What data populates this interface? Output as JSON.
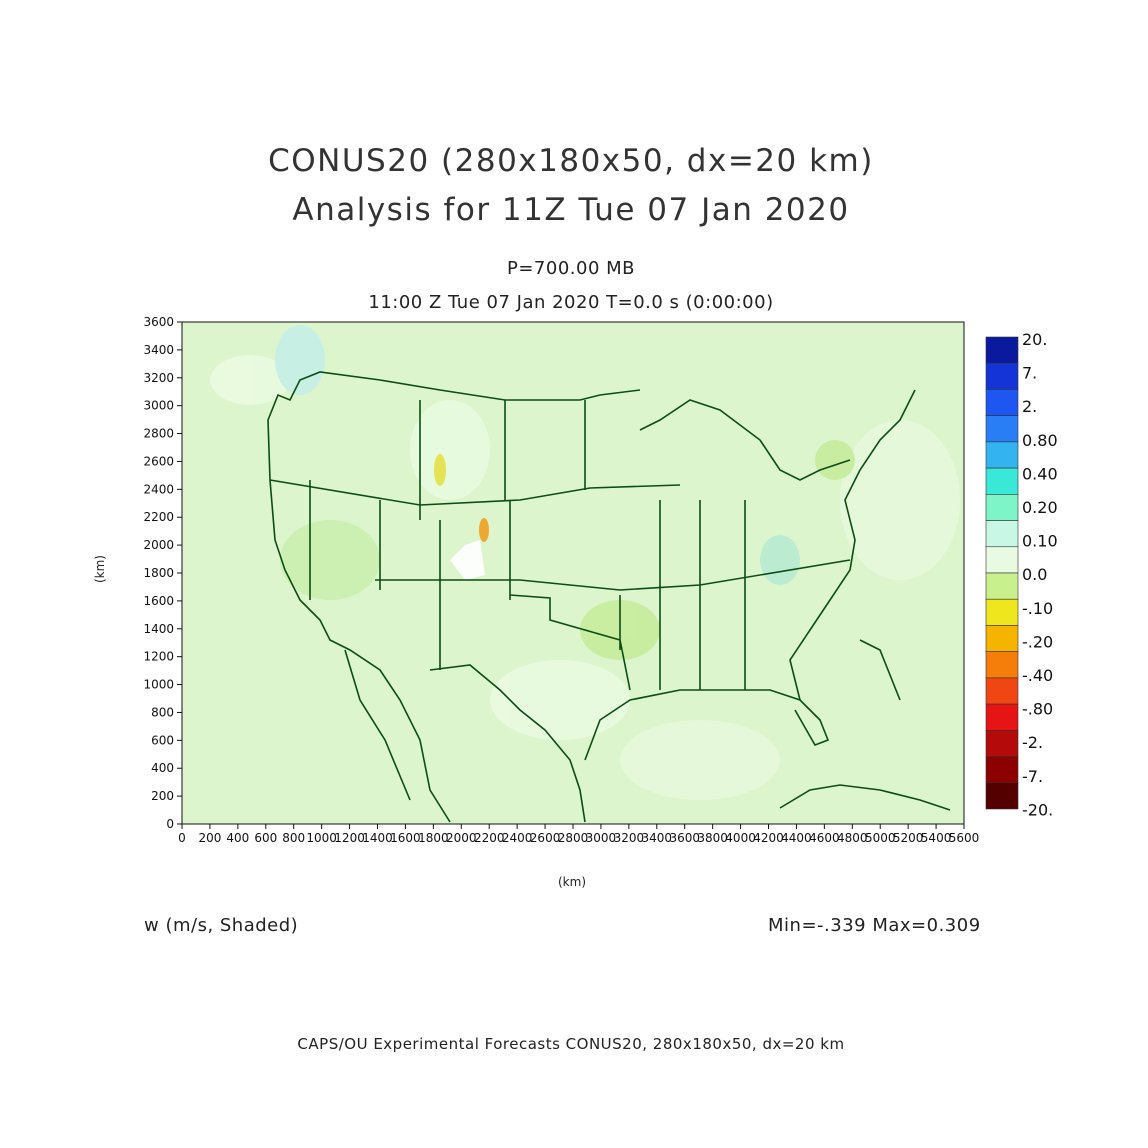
{
  "header": {
    "title_line1": "CONUS20 (280x180x50, dx=20 km)",
    "title_line2": "Analysis for 11Z Tue 07 Jan 2020",
    "level": "P=700.00 MB",
    "valid_time": "11:00 Z Tue 07 Jan 2020    T=0.0 s (0:00:00)"
  },
  "axes": {
    "x_label": "(km)",
    "y_label": "(km)",
    "x_ticks": [
      "0",
      "200",
      "400",
      "600",
      "800",
      "1000",
      "1200",
      "1400",
      "1600",
      "1800",
      "2000",
      "2200",
      "2400",
      "2600",
      "2800",
      "3000",
      "3200",
      "3400",
      "3600",
      "3800",
      "4000",
      "4200",
      "4400",
      "4600",
      "4800",
      "5000",
      "5200",
      "5400",
      "5600"
    ],
    "y_ticks": [
      "0",
      "200",
      "400",
      "600",
      "800",
      "1000",
      "1200",
      "1400",
      "1600",
      "1800",
      "2000",
      "2200",
      "2400",
      "2600",
      "2800",
      "3000",
      "3200",
      "3400",
      "3600"
    ],
    "x_range": [
      0,
      5600
    ],
    "y_range": [
      0,
      3600
    ]
  },
  "colorbar": {
    "labels": [
      "20.",
      "7.",
      "2.",
      "0.80",
      "0.40",
      "0.20",
      "0.10",
      "0.0",
      "-.10",
      "-.20",
      "-.40",
      "-.80",
      "-2.",
      "-7.",
      "-20."
    ],
    "colors": [
      "#0a1a9e",
      "#1434d8",
      "#1e56f2",
      "#2a7ef5",
      "#33b4f0",
      "#3ae8d8",
      "#7df5c8",
      "#c8f7e6",
      "#e8fbe2",
      "#c8f08c",
      "#f0e61e",
      "#f5b400",
      "#f57d0a",
      "#f04614",
      "#e61414",
      "#b40a0a",
      "#8c0000",
      "#550000"
    ]
  },
  "footer": {
    "field_label": "w (m/s, Shaded)",
    "min_max": "Min=-.339  Max=0.309",
    "credits": "CAPS/OU Experimental Forecasts  CONUS20, 280x180x50, dx=20 km"
  },
  "map": {
    "projection_extent_km": "5600 x 3600",
    "base_color": "#dff7cf",
    "coastline_color": "#0b4d14"
  }
}
